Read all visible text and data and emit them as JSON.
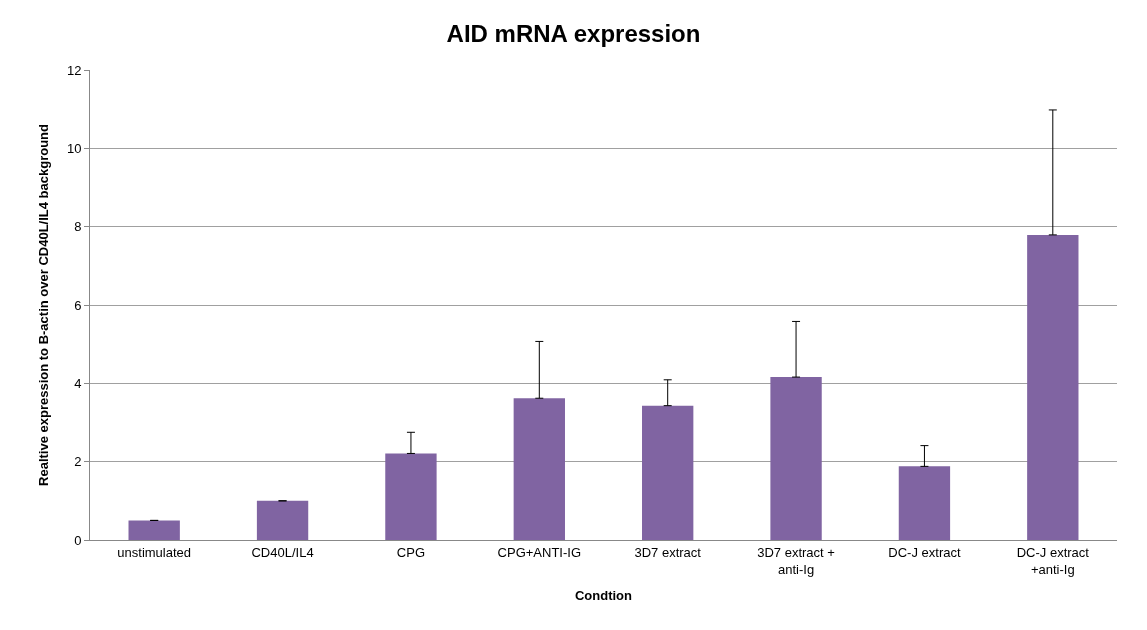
{
  "chart_data": {
    "type": "bar",
    "title": "AID mRNA expression",
    "xlabel": "Condtion",
    "ylabel": "Realtive expression to B-actin over CD40L/IL4 background",
    "categories": [
      "unstimulated",
      "CD40L/IL4",
      "CPG",
      "CPG+ANTI-IG",
      "3D7 extract",
      "3D7 extract + anti-Ig",
      "DC-J extract",
      "DC-J extract +anti-Ig"
    ],
    "values": [
      0.5,
      1.0,
      2.21,
      3.62,
      3.43,
      4.16,
      1.88,
      7.79
    ],
    "errors": [
      null,
      null,
      [
        2.21,
        2.75
      ],
      [
        3.62,
        5.07
      ],
      [
        3.43,
        4.09
      ],
      [
        4.16,
        5.58
      ],
      [
        1.88,
        2.41
      ],
      [
        7.79,
        10.98
      ]
    ],
    "color": "#8064a2",
    "ylim": [
      0,
      12
    ],
    "yticks": [
      0,
      2,
      4,
      6,
      8,
      10,
      12
    ],
    "grid": "y"
  }
}
